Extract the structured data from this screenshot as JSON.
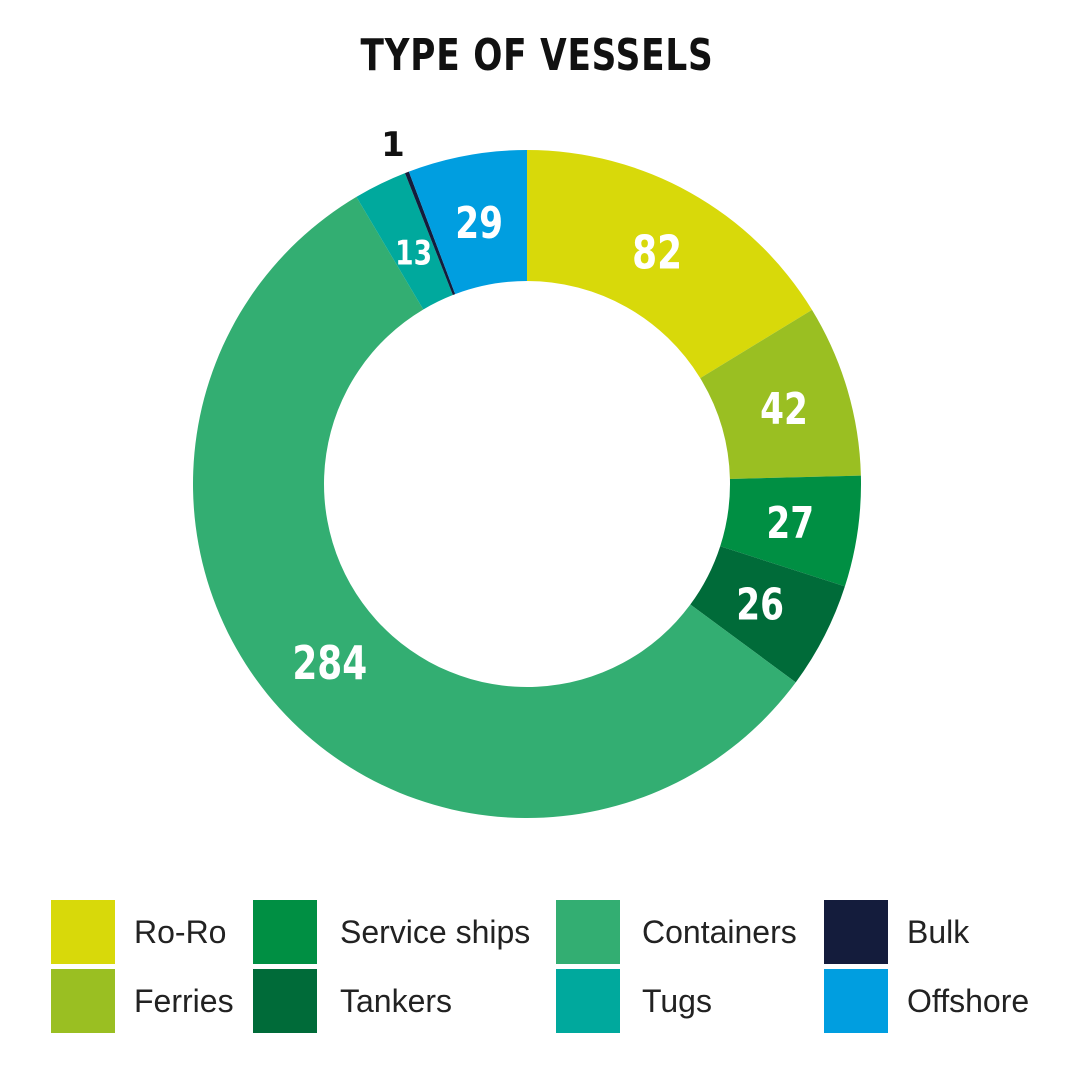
{
  "chart_data": {
    "type": "pie",
    "title": "TYPE OF VESSELS",
    "categories": [
      "Ro-Ro",
      "Ferries",
      "Service ships",
      "Tankers",
      "Containers",
      "Tugs",
      "Bulk",
      "Offshore"
    ],
    "values": [
      82,
      42,
      27,
      26,
      284,
      13,
      1,
      29
    ],
    "colors": [
      "#d8d90a",
      "#9abf22",
      "#008f43",
      "#006b39",
      "#33ae72",
      "#00a99d",
      "#141c3c",
      "#009ee0"
    ],
    "data_labels": [
      "82",
      "42",
      "27",
      "26",
      "284",
      "13",
      "1",
      "29"
    ],
    "donut": true,
    "legend_placement": "bottom"
  }
}
